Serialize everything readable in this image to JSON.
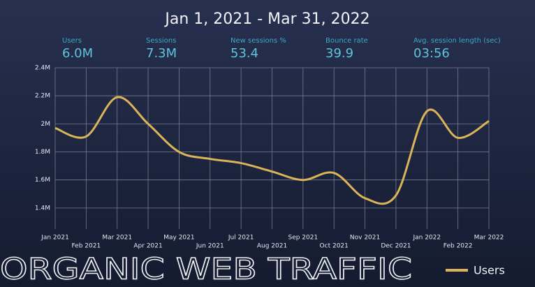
{
  "title": "Jan 1, 2021 - Mar 31, 2022",
  "kpis": [
    {
      "label": "Users",
      "value": "6.0M"
    },
    {
      "label": "Sessions",
      "value": "7.3M"
    },
    {
      "label": "New sessions %",
      "value": "53.4"
    },
    {
      "label": "Bounce rate",
      "value": "39.9"
    },
    {
      "label": "Avg. session length (sec)",
      "value": "03:56"
    }
  ],
  "footer": "ORGANIC WEB TRAFFIC",
  "chart_data": {
    "type": "line",
    "categories": [
      "Jan 2021",
      "Feb 2021",
      "Mar 2021",
      "Apr 2021",
      "May 2021",
      "Jun 2021",
      "Jul 2021",
      "Aug 2021",
      "Sep 2021",
      "Oct 2021",
      "Nov 2021",
      "Dec 2021",
      "Jan 2022",
      "Feb 2022",
      "Mar 2022"
    ],
    "series": [
      {
        "name": "Users",
        "color": "#dbb45a",
        "values": [
          1970000,
          1910000,
          2190000,
          2000000,
          1800000,
          1750000,
          1720000,
          1660000,
          1600000,
          1650000,
          1470000,
          1490000,
          2090000,
          1900000,
          2020000
        ]
      }
    ],
    "ylim": [
      1250000,
      2400000
    ],
    "yticks": [
      {
        "value": 1400000,
        "label": "1.4M"
      },
      {
        "value": 1600000,
        "label": "1.6M"
      },
      {
        "value": 1800000,
        "label": "1.8M"
      },
      {
        "value": 2000000,
        "label": "2M"
      },
      {
        "value": 2200000,
        "label": "2.2M"
      },
      {
        "value": 2400000,
        "label": "2.4M"
      }
    ],
    "grid": true,
    "legend": "bottom-right"
  }
}
